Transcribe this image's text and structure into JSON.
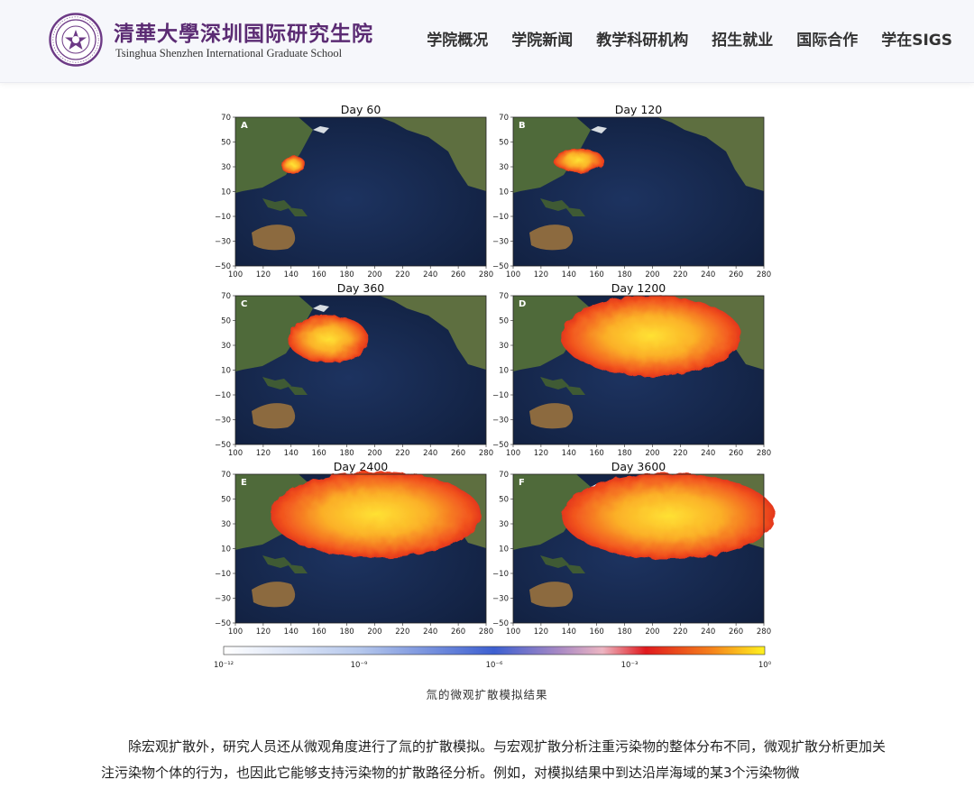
{
  "header": {
    "logo_cn": "清華大學深圳国际研究生院",
    "logo_en": "Tsinghua Shenzhen International Graduate School",
    "nav": [
      "学院概况",
      "学院新闻",
      "教学科研机构",
      "招生就业",
      "国际合作",
      "学在SIGS"
    ]
  },
  "figure": {
    "caption": "氚的微观扩散模拟结果",
    "colorbar_ticks": [
      "10⁻¹²",
      "10⁻⁹",
      "10⁻⁶",
      "10⁻³",
      "10⁰"
    ],
    "colors": {
      "ocean": "#17284a",
      "land": "#4c6a3b",
      "plume_core": "#ffd22a",
      "plume_edge": "#e3211c"
    }
  },
  "chart_data": [
    {
      "type": "heatmap",
      "panel": "A",
      "title": "Day 60",
      "xlim": [
        100,
        280
      ],
      "ylim": [
        -50,
        70
      ],
      "xticks": [
        "100",
        "120",
        "140",
        "160",
        "180",
        "200",
        "220",
        "240",
        "260",
        "280"
      ],
      "yticks": [
        "70",
        "50",
        "30",
        "10",
        "−10",
        "−30",
        "−50"
      ]
    },
    {
      "type": "heatmap",
      "panel": "B",
      "title": "Day 120",
      "xlim": [
        100,
        280
      ],
      "ylim": [
        -50,
        70
      ],
      "xticks": [
        "100",
        "120",
        "140",
        "160",
        "180",
        "200",
        "220",
        "240",
        "260",
        "280"
      ],
      "yticks": [
        "70",
        "50",
        "30",
        "10",
        "−10",
        "−30",
        "−50"
      ]
    },
    {
      "type": "heatmap",
      "panel": "C",
      "title": "Day 360",
      "xlim": [
        100,
        280
      ],
      "ylim": [
        -50,
        70
      ],
      "xticks": [
        "100",
        "120",
        "140",
        "160",
        "180",
        "200",
        "220",
        "240",
        "260",
        "280"
      ],
      "yticks": [
        "70",
        "50",
        "30",
        "10",
        "−10",
        "−30",
        "−50"
      ]
    },
    {
      "type": "heatmap",
      "panel": "D",
      "title": "Day 1200",
      "xlim": [
        100,
        280
      ],
      "ylim": [
        -50,
        70
      ],
      "xticks": [
        "100",
        "120",
        "140",
        "160",
        "180",
        "200",
        "220",
        "240",
        "260",
        "280"
      ],
      "yticks": [
        "70",
        "50",
        "30",
        "10",
        "−10",
        "−30",
        "−50"
      ]
    },
    {
      "type": "heatmap",
      "panel": "E",
      "title": "Day 2400",
      "xlim": [
        100,
        280
      ],
      "ylim": [
        -50,
        70
      ],
      "xticks": [
        "100",
        "120",
        "140",
        "160",
        "180",
        "200",
        "220",
        "240",
        "260",
        "280"
      ],
      "yticks": [
        "70",
        "50",
        "30",
        "10",
        "−10",
        "−30",
        "−50"
      ]
    },
    {
      "type": "heatmap",
      "panel": "F",
      "title": "Day 3600",
      "xlim": [
        100,
        280
      ],
      "ylim": [
        -50,
        70
      ],
      "xticks": [
        "100",
        "120",
        "140",
        "160",
        "180",
        "200",
        "220",
        "240",
        "260",
        "280"
      ],
      "yticks": [
        "70",
        "50",
        "30",
        "10",
        "−10",
        "−30",
        "−50"
      ]
    }
  ],
  "article": {
    "paragraph": "除宏观扩散外，研究人员还从微观角度进行了氚的扩散模拟。与宏观扩散分析注重污染物的整体分布不同，微观扩散分析更加关注污染物个体的行为，也因此它能够支持污染物的扩散路径分析。例如，对模拟结果中到达沿岸海域的某3个污染物微"
  }
}
